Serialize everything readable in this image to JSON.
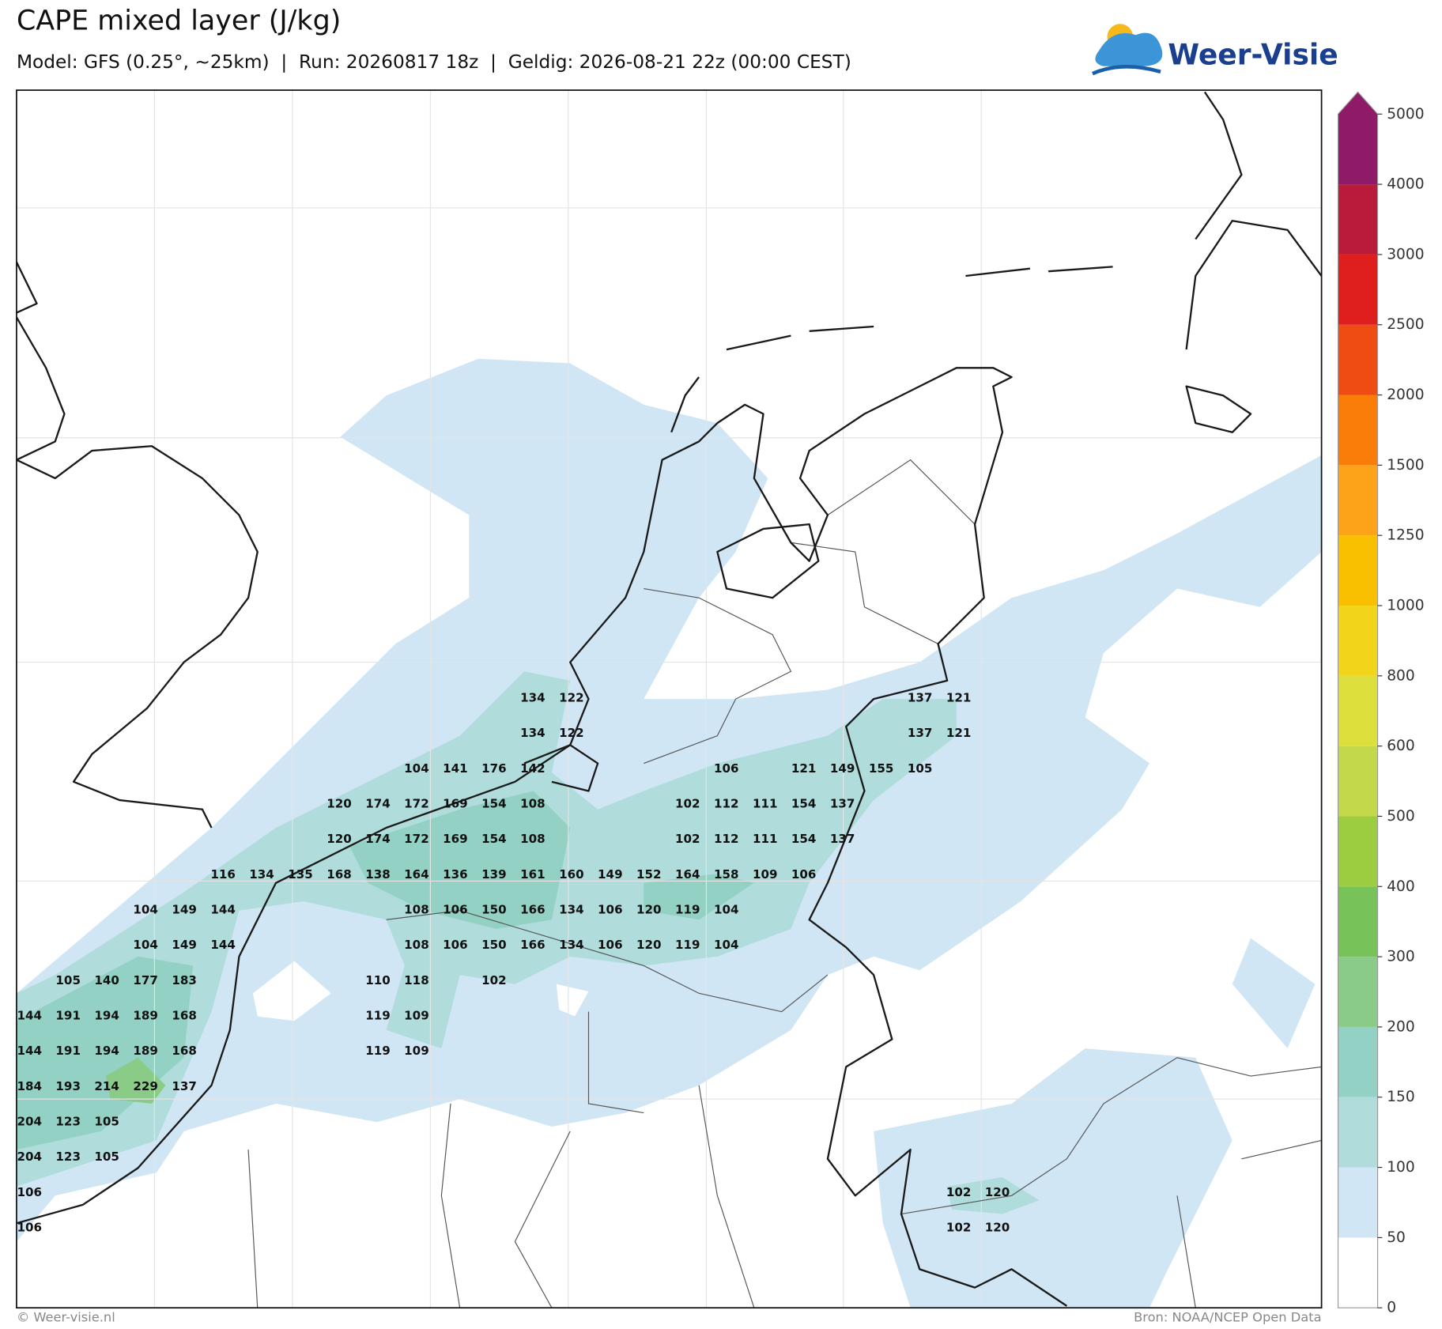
{
  "header": {
    "title": "CAPE mixed layer (J/kg)",
    "subtitle": "Model: GFS (0.25°, ~25km)  |  Run: 20260817 18z  |  Geldig: 2026-08-21 22z (00:00 CEST)",
    "logo": "Weer-Visie"
  },
  "colorbar": {
    "ticks": [
      0,
      50,
      100,
      150,
      200,
      300,
      400,
      500,
      600,
      800,
      1000,
      1250,
      1500,
      2000,
      2500,
      3000,
      4000,
      5000
    ],
    "colors": [
      "#ffffff",
      "#d0e6f5",
      "#b0dcdc",
      "#93d1c4",
      "#8acb88",
      "#78c25a",
      "#9ccc40",
      "#c4d94a",
      "#dde03c",
      "#f2d51a",
      "#f9c000",
      "#fca31a",
      "#f97d08",
      "#ee4c12",
      "#df1e1e",
      "#b81c3a",
      "#8e1a68"
    ]
  },
  "map": {
    "labels": [
      [
        null,
        null,
        null,
        null,
        null,
        null,
        null,
        null,
        null,
        null,
        null,
        null,
        null,
        134,
        122,
        null,
        null,
        null,
        null,
        null,
        null,
        null,
        null,
        137,
        121,
        null
      ],
      [
        null,
        null,
        null,
        null,
        null,
        null,
        null,
        null,
        null,
        null,
        null,
        null,
        null,
        134,
        122,
        null,
        null,
        null,
        null,
        null,
        null,
        null,
        null,
        137,
        121,
        null
      ],
      [
        null,
        null,
        null,
        null,
        null,
        null,
        null,
        null,
        null,
        null,
        104,
        141,
        176,
        142,
        null,
        null,
        null,
        null,
        106,
        null,
        121,
        149,
        155,
        105,
        null,
        null
      ],
      [
        null,
        null,
        null,
        null,
        null,
        null,
        null,
        null,
        120,
        174,
        172,
        169,
        154,
        108,
        null,
        null,
        null,
        102,
        112,
        111,
        154,
        137,
        null,
        null,
        null,
        null
      ],
      [
        null,
        null,
        null,
        null,
        null,
        null,
        null,
        null,
        120,
        174,
        172,
        169,
        154,
        108,
        null,
        null,
        null,
        102,
        112,
        111,
        154,
        137,
        null,
        null,
        null,
        null
      ],
      [
        null,
        null,
        null,
        null,
        null,
        116,
        134,
        135,
        168,
        138,
        164,
        136,
        139,
        161,
        160,
        149,
        152,
        164,
        158,
        109,
        106,
        null,
        null,
        null,
        null,
        null
      ],
      [
        null,
        null,
        null,
        104,
        149,
        144,
        null,
        null,
        null,
        null,
        108,
        106,
        150,
        166,
        134,
        106,
        120,
        119,
        104,
        null,
        null,
        null,
        null,
        null,
        null,
        null
      ],
      [
        null,
        null,
        null,
        104,
        149,
        144,
        null,
        null,
        null,
        null,
        108,
        106,
        150,
        166,
        134,
        106,
        120,
        119,
        104,
        null,
        null,
        null,
        null,
        null,
        null,
        null
      ],
      [
        null,
        105,
        140,
        177,
        183,
        null,
        null,
        null,
        null,
        110,
        118,
        null,
        102,
        null,
        null,
        null,
        null,
        null,
        null,
        null,
        null,
        null,
        null,
        null,
        null,
        null
      ],
      [
        144,
        191,
        194,
        189,
        168,
        null,
        null,
        null,
        null,
        119,
        109,
        null,
        null,
        null,
        null,
        null,
        null,
        null,
        null,
        null,
        null,
        null,
        null,
        null,
        null,
        null
      ],
      [
        144,
        191,
        194,
        189,
        168,
        null,
        null,
        null,
        null,
        119,
        109,
        null,
        null,
        null,
        null,
        null,
        null,
        null,
        null,
        null,
        null,
        null,
        null,
        null,
        null,
        null
      ],
      [
        184,
        193,
        214,
        229,
        137,
        null,
        null,
        null,
        null,
        null,
        null,
        null,
        null,
        null,
        null,
        null,
        null,
        null,
        null,
        null,
        null,
        null,
        null,
        null,
        null,
        null
      ],
      [
        204,
        123,
        105,
        null,
        null,
        null,
        null,
        null,
        null,
        null,
        null,
        null,
        null,
        null,
        null,
        null,
        null,
        null,
        null,
        null,
        null,
        null,
        null,
        null,
        null,
        null
      ],
      [
        204,
        123,
        105,
        null,
        null,
        null,
        null,
        null,
        null,
        null,
        null,
        null,
        null,
        null,
        null,
        null,
        null,
        null,
        null,
        null,
        null,
        null,
        null,
        null,
        null,
        null
      ],
      [
        106,
        null,
        null,
        null,
        null,
        null,
        null,
        null,
        null,
        null,
        null,
        null,
        null,
        null,
        null,
        null,
        null,
        null,
        null,
        null,
        null,
        null,
        null,
        null,
        102,
        120
      ],
      [
        106,
        null,
        null,
        null,
        null,
        null,
        null,
        null,
        null,
        null,
        null,
        null,
        null,
        null,
        null,
        null,
        null,
        null,
        null,
        null,
        null,
        null,
        null,
        null,
        102,
        120
      ]
    ]
  },
  "footer": {
    "left": "© Weer-visie.nl",
    "right": "Bron: NOAA/NCEP Open Data"
  }
}
